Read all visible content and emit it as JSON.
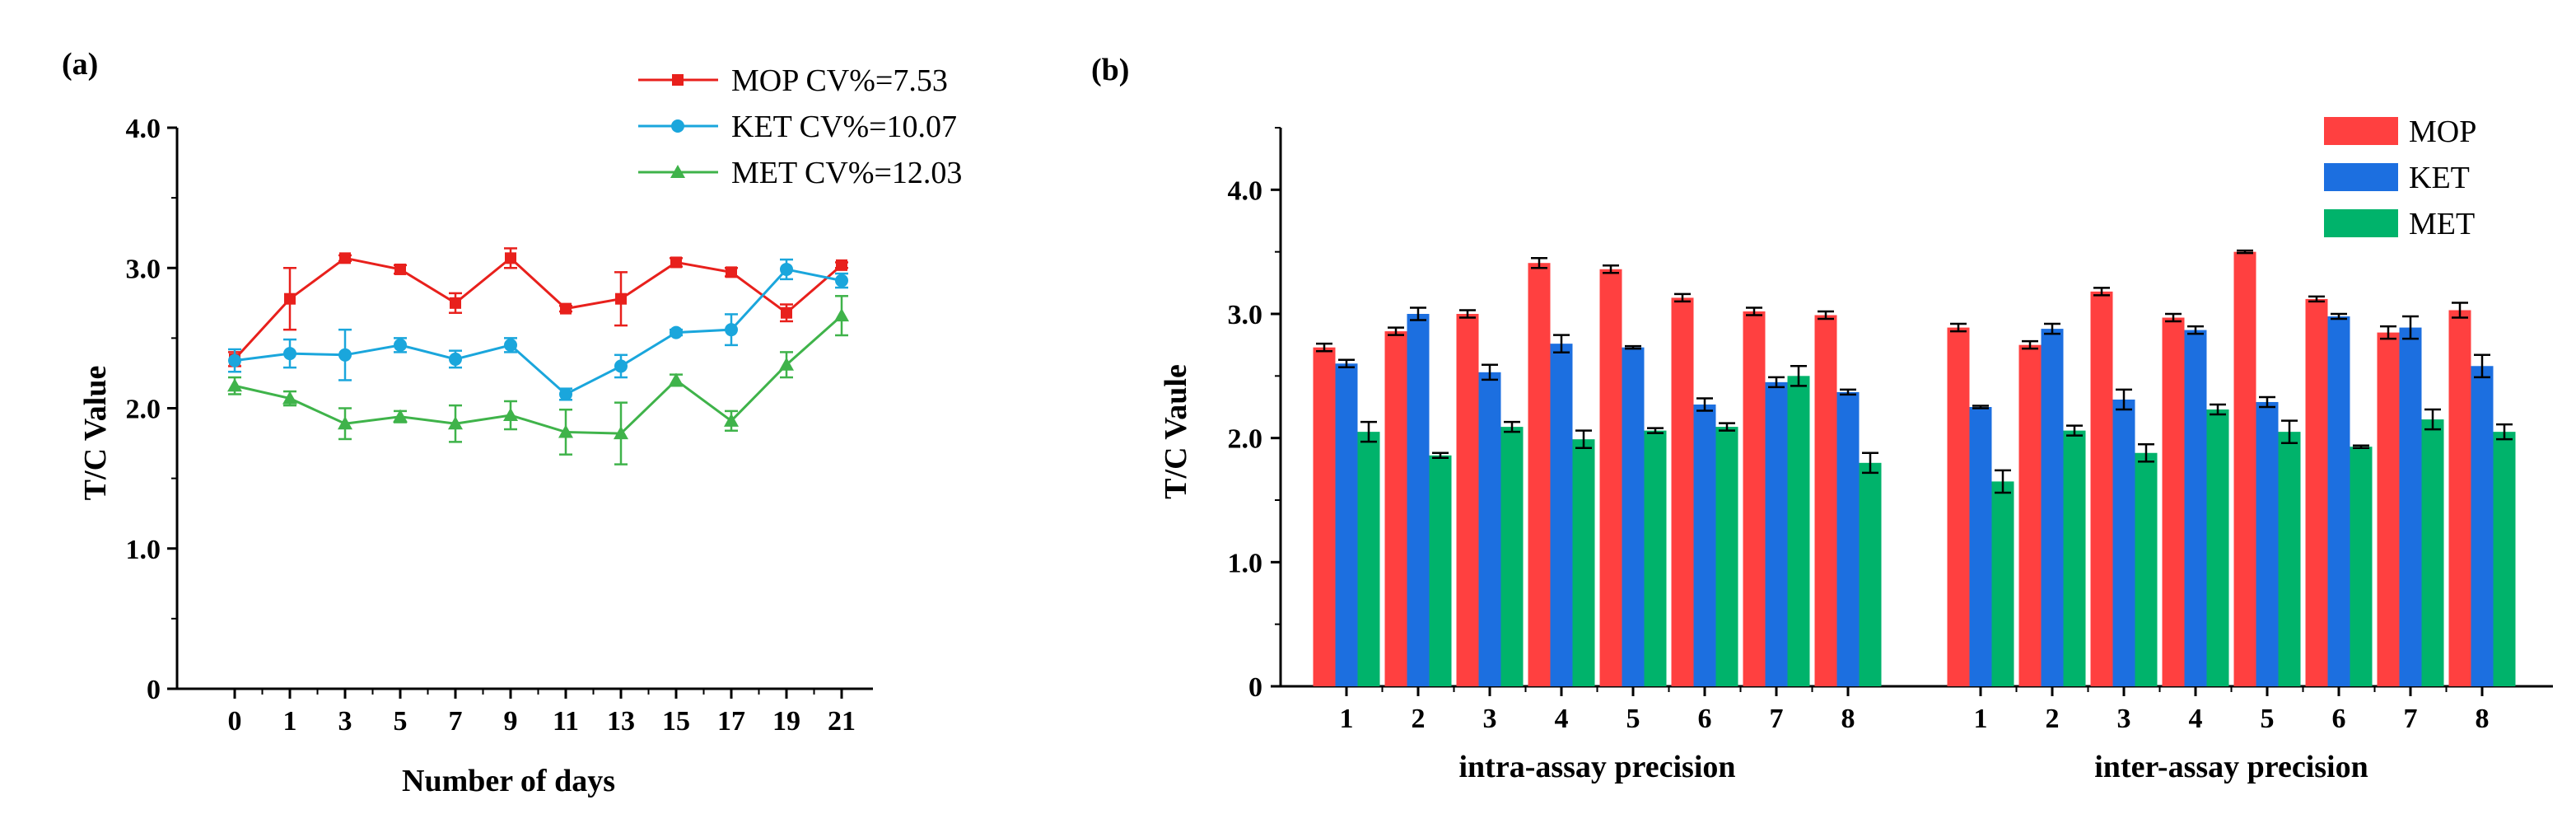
{
  "chart_data": [
    {
      "panel": "(a)",
      "type": "line",
      "xlabel": "Number of  days",
      "ylabel": "T/C Value",
      "ylim": [
        0,
        4.0
      ],
      "yticks": [
        "0",
        "1.0",
        "2.0",
        "3.0",
        "4.0"
      ],
      "x": [
        0,
        1,
        3,
        5,
        7,
        9,
        11,
        13,
        15,
        17,
        19,
        21
      ],
      "xticklabels": [
        "0",
        "1",
        "3",
        "5",
        "7",
        "9",
        "11",
        "13",
        "15",
        "17",
        "19",
        "21"
      ],
      "legend_position": "top-right",
      "series": [
        {
          "name": "MOP CV%=7.53",
          "color": "#e8201c",
          "marker": "square",
          "values": [
            2.35,
            2.78,
            3.07,
            2.99,
            2.75,
            3.07,
            2.71,
            2.78,
            3.04,
            2.97,
            2.68,
            3.02
          ],
          "errors": [
            0.05,
            0.22,
            0.02,
            0.03,
            0.07,
            0.07,
            0.02,
            0.19,
            0.03,
            0.03,
            0.06,
            0.02
          ]
        },
        {
          "name": "KET CV%=10.07",
          "color": "#1aa6dc",
          "marker": "circle",
          "values": [
            2.34,
            2.39,
            2.38,
            2.45,
            2.35,
            2.45,
            2.1,
            2.3,
            2.54,
            2.56,
            2.99,
            2.91
          ],
          "errors": [
            0.08,
            0.1,
            0.18,
            0.05,
            0.06,
            0.05,
            0.04,
            0.08,
            0.02,
            0.11,
            0.07,
            0.05
          ]
        },
        {
          "name": "MET CV%=12.03",
          "color": "#3fb34a",
          "marker": "triangle",
          "values": [
            2.16,
            2.07,
            1.89,
            1.94,
            1.89,
            1.95,
            1.83,
            1.82,
            2.2,
            1.91,
            2.31,
            2.66
          ],
          "errors": [
            0.06,
            0.05,
            0.11,
            0.04,
            0.13,
            0.1,
            0.16,
            0.22,
            0.04,
            0.07,
            0.09,
            0.14
          ]
        }
      ]
    },
    {
      "panel": "(b)",
      "type": "bar",
      "ylabel": "T/C Vaule",
      "ylim": [
        0,
        4.5
      ],
      "yticks": [
        "0",
        "1.0",
        "2.0",
        "3.0",
        "4.0"
      ],
      "legend_position": "top-right",
      "groups": [
        {
          "label": "intra-assay precision",
          "categories": [
            "1",
            "2",
            "3",
            "4",
            "5",
            "6",
            "7",
            "8"
          ],
          "series": [
            {
              "name": "MOP",
              "color": "#ff4040",
              "values": [
                2.73,
                2.86,
                3.0,
                3.41,
                3.36,
                3.13,
                3.02,
                2.99
              ],
              "errors": [
                0.03,
                0.03,
                0.03,
                0.04,
                0.03,
                0.03,
                0.03,
                0.03
              ]
            },
            {
              "name": "KET",
              "color": "#1c6fe0",
              "values": [
                2.6,
                3.0,
                2.53,
                2.76,
                2.73,
                2.27,
                2.45,
                2.37
              ],
              "errors": [
                0.03,
                0.05,
                0.06,
                0.07,
                0.01,
                0.05,
                0.04,
                0.02
              ]
            },
            {
              "name": "MET",
              "color": "#00b36b",
              "values": [
                2.05,
                1.86,
                2.09,
                1.99,
                2.06,
                2.09,
                2.5,
                1.8
              ],
              "errors": [
                0.08,
                0.02,
                0.04,
                0.07,
                0.02,
                0.03,
                0.08,
                0.08
              ]
            }
          ]
        },
        {
          "label": "inter-assay precision",
          "categories": [
            "1",
            "2",
            "3",
            "4",
            "5",
            "6",
            "7",
            "8"
          ],
          "series": [
            {
              "name": "MOP",
              "color": "#ff4040",
              "values": [
                2.89,
                2.75,
                3.18,
                2.97,
                3.5,
                3.12,
                2.85,
                3.03
              ],
              "errors": [
                0.03,
                0.03,
                0.03,
                0.03,
                0.01,
                0.02,
                0.05,
                0.06
              ]
            },
            {
              "name": "KET",
              "color": "#1c6fe0",
              "values": [
                2.25,
                2.88,
                2.31,
                2.87,
                2.29,
                2.98,
                2.89,
                2.58
              ],
              "errors": [
                0.01,
                0.04,
                0.08,
                0.03,
                0.04,
                0.02,
                0.09,
                0.09
              ]
            },
            {
              "name": "MET",
              "color": "#00b36b",
              "values": [
                1.65,
                2.06,
                1.88,
                2.23,
                2.05,
                1.93,
                2.15,
                2.05
              ],
              "errors": [
                0.09,
                0.04,
                0.07,
                0.04,
                0.09,
                0.01,
                0.08,
                0.06
              ]
            }
          ]
        }
      ]
    }
  ]
}
